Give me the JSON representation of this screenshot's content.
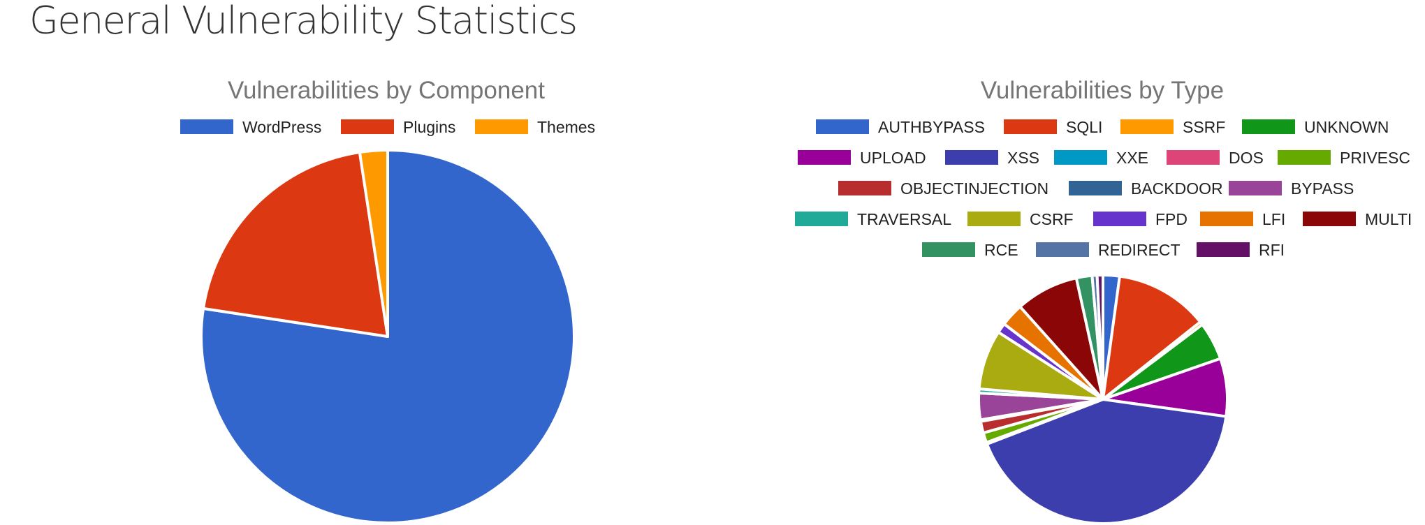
{
  "page": {
    "title": "General Vulnerability Statistics"
  },
  "chart_data": [
    {
      "type": "pie",
      "title": "Vulnerabilities by Component",
      "legend_placement": "top",
      "categories": [
        "WordPress",
        "Plugins",
        "Themes"
      ],
      "values": [
        77.4,
        20.2,
        2.4
      ],
      "colors": [
        "#3366cc",
        "#dc3912",
        "#ff9900"
      ]
    },
    {
      "type": "pie",
      "title": "Vulnerabilities by Type",
      "legend_placement": "top",
      "categories": [
        "AUTHBYPASS",
        "SQLI",
        "SSRF",
        "UNKNOWN",
        "UPLOAD",
        "XSS",
        "XXE",
        "DOS",
        "PRIVESC",
        "OBJECTINJECTION",
        "BACKDOOR",
        "BYPASS",
        "TRAVERSAL",
        "CSRF",
        "FPD",
        "LFI",
        "MULTI",
        "RCE",
        "REDIRECT",
        "RFI"
      ],
      "values": [
        2.0,
        11.3,
        0.4,
        4.6,
        7.0,
        39.0,
        0.1,
        0.1,
        1.2,
        1.4,
        0.2,
        3.2,
        0.5,
        7.2,
        1.2,
        2.8,
        7.6,
        1.9,
        0.6,
        0.7
      ],
      "colors": [
        "#3366cc",
        "#dc3912",
        "#ff9900",
        "#109618",
        "#990099",
        "#3b3eac",
        "#0099c6",
        "#dd4477",
        "#66aa00",
        "#b82e2e",
        "#316395",
        "#994499",
        "#22aa99",
        "#aaaa11",
        "#6633cc",
        "#e67300",
        "#8b0707",
        "#329262",
        "#5574a6",
        "#651067"
      ]
    }
  ]
}
